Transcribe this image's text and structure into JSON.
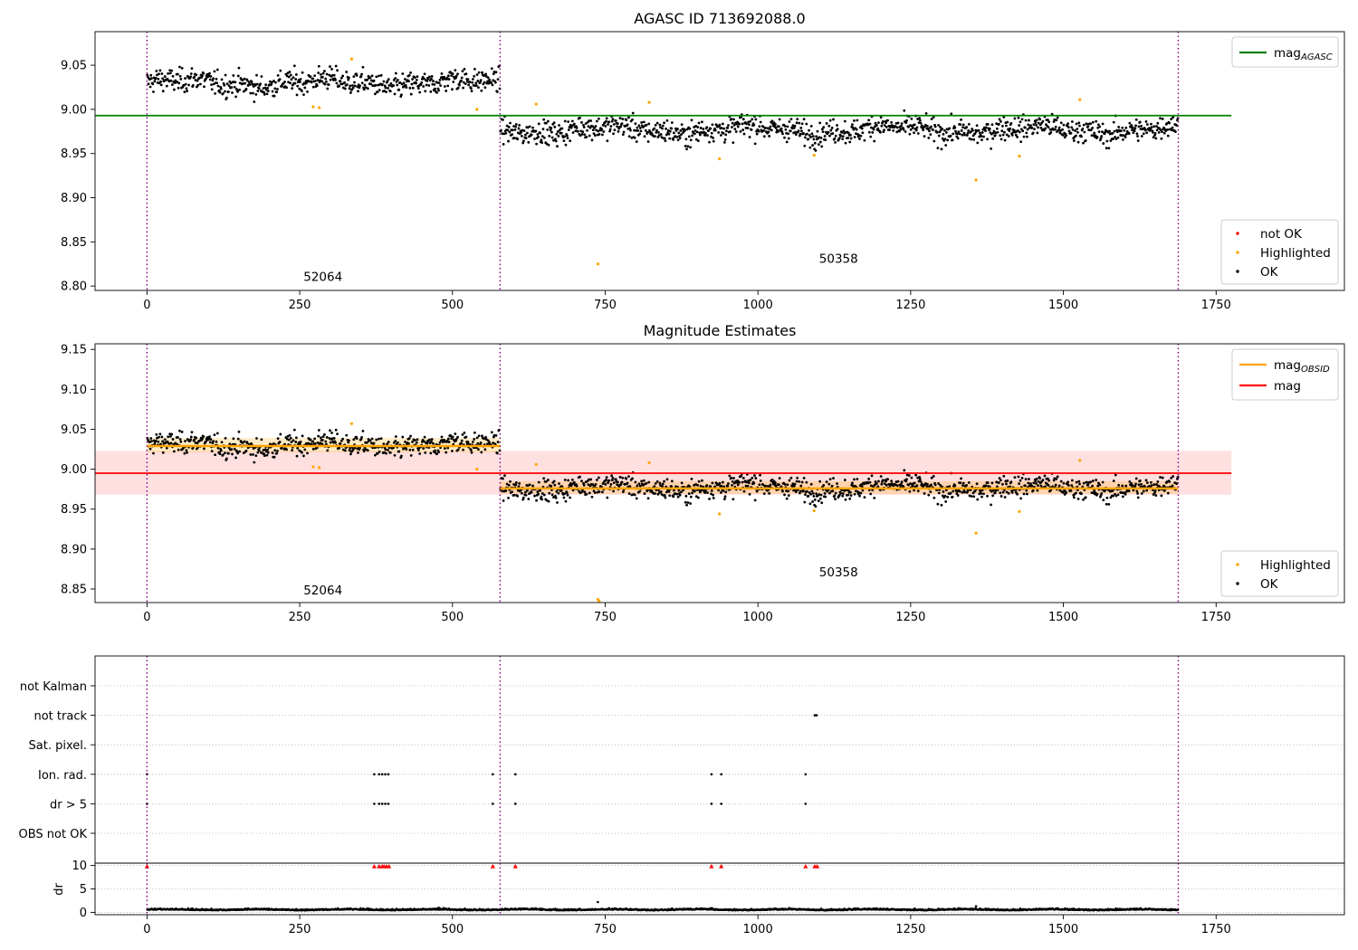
{
  "chart_data": [
    {
      "type": "scatter",
      "title": "AGASC ID 713692088.0",
      "xlim": [
        -85,
        1960
      ],
      "ylim": [
        8.795,
        9.088
      ],
      "xticks": [
        0,
        250,
        500,
        750,
        1000,
        1250,
        1500,
        1750
      ],
      "yticks": [
        8.8,
        8.85,
        8.9,
        8.95,
        9.0,
        9.05
      ],
      "obs_boundaries": [
        0,
        578,
        1688
      ],
      "obs_labels": [
        {
          "text": "52064",
          "x": 288,
          "y": 8.806
        },
        {
          "text": "50358",
          "x": 1132,
          "y": 8.826
        }
      ],
      "segments": [
        {
          "x0": 0,
          "x1": 578,
          "mean": 9.03,
          "spread": 0.011
        },
        {
          "x0": 578,
          "x1": 1688,
          "mean": 8.977,
          "spread": 0.011
        }
      ],
      "lines": [
        {
          "name": "mag_AGASC",
          "y": 8.993,
          "x0": -85,
          "x1": 1775,
          "color": "#008000"
        }
      ],
      "highlighted": [
        [
          272,
          9.003
        ],
        [
          282,
          9.002
        ],
        [
          335,
          9.057
        ],
        [
          540,
          9.0
        ],
        [
          637,
          9.006
        ],
        [
          738,
          8.825
        ],
        [
          822,
          9.008
        ],
        [
          937,
          8.944
        ],
        [
          1092,
          8.948
        ],
        [
          1357,
          8.92
        ],
        [
          1428,
          8.947
        ],
        [
          1527,
          9.011
        ]
      ],
      "legend_lines": [
        {
          "label": "mag",
          "sub": "AGASC",
          "color": "#008000"
        }
      ],
      "legend_points": [
        {
          "label": "not OK",
          "color": "#ff0000"
        },
        {
          "label": "Highlighted",
          "color": "#ffa500"
        },
        {
          "label": "OK",
          "color": "#000000"
        }
      ]
    },
    {
      "type": "scatter",
      "title": "Magnitude Estimates",
      "xlim": [
        -85,
        1960
      ],
      "ylim": [
        8.833,
        9.157
      ],
      "xticks": [
        0,
        250,
        500,
        750,
        1000,
        1250,
        1500,
        1750
      ],
      "yticks": [
        8.85,
        8.9,
        8.95,
        9.0,
        9.05,
        9.1,
        9.15
      ],
      "obs_boundaries": [
        0,
        578,
        1688
      ],
      "obs_labels": [
        {
          "text": "52064",
          "x": 288,
          "y": 8.843
        },
        {
          "text": "50358",
          "x": 1132,
          "y": 8.866
        }
      ],
      "segments": [
        {
          "x0": 0,
          "x1": 578,
          "mean": 9.03,
          "spread": 0.011
        },
        {
          "x0": 578,
          "x1": 1688,
          "mean": 8.977,
          "spread": 0.011
        }
      ],
      "bands": [
        {
          "x0": -85,
          "x1": 1775,
          "y0": 8.968,
          "y1": 9.023,
          "color": "#ff0000",
          "opacity": 0.12
        },
        {
          "x0": 0,
          "x1": 578,
          "y0": 9.021,
          "y1": 9.039,
          "color": "#ffa500",
          "opacity": 0.22
        },
        {
          "x0": 578,
          "x1": 1688,
          "y0": 8.969,
          "y1": 8.985,
          "color": "#ffa500",
          "opacity": 0.22
        }
      ],
      "lines": [
        {
          "name": "mag",
          "y": 8.995,
          "x0": -85,
          "x1": 1775,
          "color": "#ff0000"
        },
        {
          "name": "mag_OBSID",
          "y": 9.029,
          "x0": 0,
          "x1": 578,
          "color": "#ffa500"
        },
        {
          "name": "mag_OBSID",
          "y": 8.976,
          "x0": 578,
          "x1": 1688,
          "color": "#ffa500"
        }
      ],
      "highlighted": [
        [
          272,
          9.003
        ],
        [
          282,
          9.002
        ],
        [
          335,
          9.057
        ],
        [
          540,
          9.0
        ],
        [
          637,
          9.006
        ],
        [
          738,
          8.837
        ],
        [
          740,
          8.835
        ],
        [
          822,
          9.008
        ],
        [
          937,
          8.944
        ],
        [
          1092,
          8.948
        ],
        [
          1357,
          8.92
        ],
        [
          1428,
          8.947
        ],
        [
          1527,
          9.011
        ]
      ],
      "legend_lines": [
        {
          "label": "mag",
          "sub": "OBSID",
          "color": "#ffa500"
        },
        {
          "label": "mag",
          "sub": "",
          "color": "#ff0000"
        }
      ],
      "legend_points": [
        {
          "label": "Highlighted",
          "color": "#ffa500"
        },
        {
          "label": "OK",
          "color": "#000000"
        }
      ]
    },
    {
      "type": "scatter",
      "title": "",
      "xlim": [
        -85,
        1960
      ],
      "xticks": [
        0,
        250,
        500,
        750,
        1000,
        1250,
        1500,
        1750
      ],
      "obs_boundaries": [
        0,
        578,
        1688
      ],
      "flag_labels": [
        "not Kalman",
        "not track",
        "Sat. pixel.",
        "Ion. rad.",
        "dr > 5",
        "OBS not OK"
      ],
      "flag_points": {
        "not track": [
          1093,
          1096
        ],
        "Ion. rad.": [
          0,
          372,
          380,
          385,
          390,
          395,
          566,
          603,
          924,
          940,
          1078
        ],
        "dr > 5": [
          0,
          372,
          380,
          385,
          390,
          395,
          566,
          603,
          924,
          940,
          1078
        ]
      },
      "dr_ylabel": "dr",
      "dr_ylim": [
        -0.5,
        10.5
      ],
      "dr_yticks": [
        0,
        5,
        10
      ],
      "dr_high": [
        0,
        372,
        380,
        385,
        388,
        392,
        396,
        566,
        603,
        924,
        940,
        1078,
        1093,
        1097
      ],
      "dr_outliers": [
        [
          738,
          2.2
        ],
        [
          1357,
          1.3
        ]
      ],
      "dr_baseline": 0.5
    }
  ]
}
